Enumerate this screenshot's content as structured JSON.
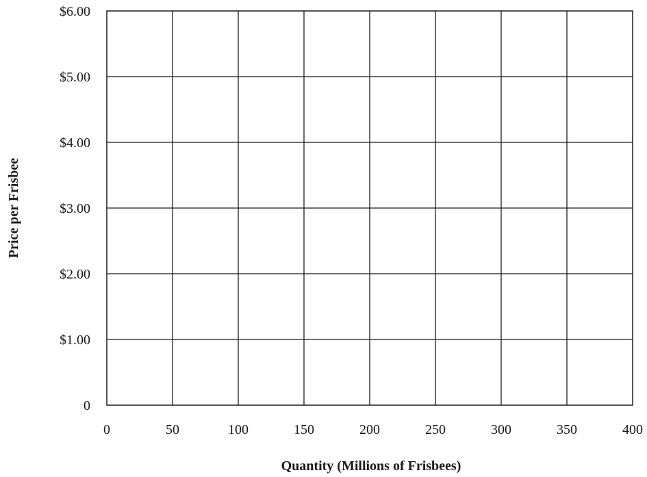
{
  "chart_data": {
    "type": "line",
    "title": "",
    "xlabel": "Quantity (Millions of Frisbees)",
    "ylabel": "Price per Frisbee",
    "xlim": [
      0,
      400
    ],
    "ylim": [
      0,
      6
    ],
    "x_ticks": [
      0,
      50,
      100,
      150,
      200,
      250,
      300,
      350,
      400
    ],
    "x_tick_labels": [
      "0",
      "50",
      "100",
      "150",
      "200",
      "250",
      "300",
      "350",
      "400"
    ],
    "y_ticks": [
      0,
      1,
      2,
      3,
      4,
      5,
      6
    ],
    "y_tick_labels": [
      "0",
      "$1.00",
      "$2.00",
      "$3.00",
      "$4.00",
      "$5.00",
      "$6.00"
    ],
    "grid": true,
    "series": [],
    "colors": {
      "grid": "#1a1a1a",
      "text": "#1a1a1a",
      "background": "#ffffff"
    }
  }
}
